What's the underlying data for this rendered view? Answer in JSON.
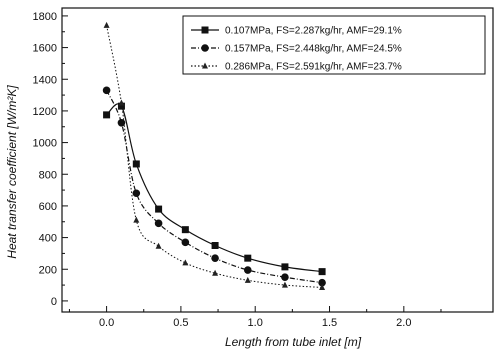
{
  "chart_data": {
    "type": "line",
    "title": "",
    "xlabel": "Length from tube inlet [m]",
    "ylabel": "Heat transfer coefficient [W/m",
    "ylabel_suffix": "²K]",
    "xlim": [
      -0.3,
      2.6
    ],
    "ylim": [
      -70,
      1850
    ],
    "x_ticks": [
      0.0,
      0.5,
      1.0,
      1.5,
      2.0
    ],
    "x_tick_labels": [
      "0.0",
      "0.5",
      "1.0",
      "1.5",
      "2.0"
    ],
    "y_ticks": [
      0,
      200,
      400,
      600,
      800,
      1000,
      1200,
      1400,
      1600,
      1800
    ],
    "y_tick_labels": [
      "0",
      "200",
      "400",
      "600",
      "800",
      "1000",
      "1200",
      "1400",
      "1600",
      "1800"
    ],
    "grid": false,
    "legend_position": "top-right",
    "series": [
      {
        "name": "0.107MPa, FS=2.287kg/hr, AMF=29.1%",
        "marker": "square",
        "line": "solid",
        "x": [
          0.0,
          0.1,
          0.2,
          0.35,
          0.53,
          0.73,
          0.95,
          1.2,
          1.45
        ],
        "y": [
          1175,
          1230,
          865,
          580,
          450,
          350,
          270,
          215,
          185
        ]
      },
      {
        "name": "0.157MPa, FS=2.448kg/hr, AMF=24.5%",
        "marker": "circle",
        "line": "dashdot",
        "x": [
          0.0,
          0.1,
          0.2,
          0.35,
          0.53,
          0.73,
          0.95,
          1.2,
          1.45
        ],
        "y": [
          1330,
          1125,
          680,
          490,
          370,
          270,
          195,
          150,
          115
        ]
      },
      {
        "name": "0.286MPa, FS=2.591kg/hr, AMF=23.7%",
        "marker": "triangle",
        "line": "dotted",
        "x": [
          0.0,
          0.1,
          0.2,
          0.35,
          0.53,
          0.73,
          0.95,
          1.2,
          1.45
        ],
        "y": [
          1740,
          1250,
          510,
          345,
          240,
          175,
          130,
          100,
          85
        ]
      }
    ]
  }
}
